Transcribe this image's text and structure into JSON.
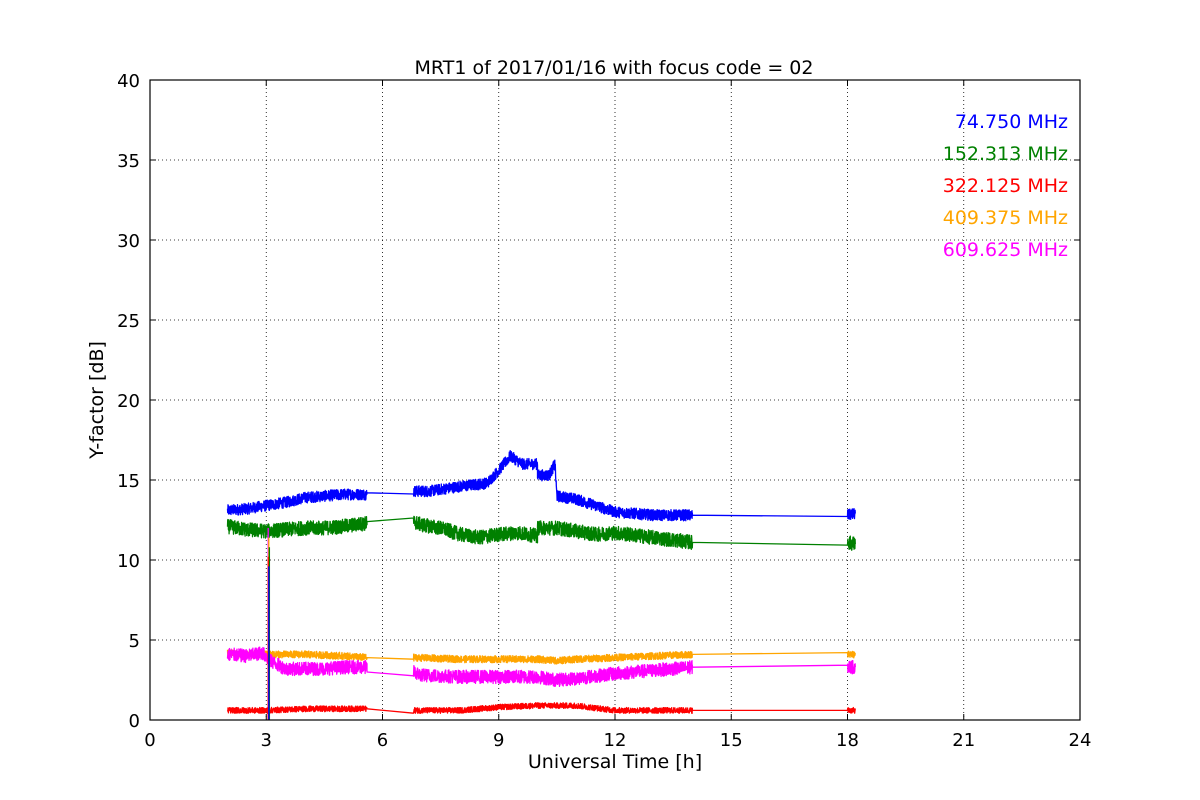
{
  "chart_data": {
    "type": "line",
    "title": "MRT1 of 2017/01/16 with focus code = 02",
    "xlabel": "Universal Time [h]",
    "ylabel": "Y-factor [dB]",
    "xlim": [
      0,
      24
    ],
    "ylim": [
      0,
      40
    ],
    "xticks": [
      0,
      3,
      6,
      9,
      12,
      15,
      18,
      21,
      24
    ],
    "yticks": [
      0,
      5,
      10,
      15,
      20,
      25,
      30,
      35,
      40
    ],
    "grid": true,
    "legend_position": "top-right",
    "series": [
      {
        "name": "74.750 MHz",
        "color": "#0000ff",
        "noise": 0.35,
        "points": [
          [
            2.0,
            13.1
          ],
          [
            2.5,
            13.2
          ],
          [
            3.0,
            13.4
          ],
          [
            3.5,
            13.6
          ],
          [
            4.0,
            13.9
          ],
          [
            4.5,
            14.0
          ],
          [
            5.0,
            14.1
          ],
          [
            5.6,
            14.1
          ],
          [
            5.6,
            14.2
          ],
          [
            6.8,
            14.3
          ],
          [
            7.2,
            14.3
          ],
          [
            8.0,
            14.6
          ],
          [
            8.7,
            14.8
          ],
          [
            9.0,
            15.6
          ],
          [
            9.3,
            16.5
          ],
          [
            9.6,
            16.0
          ],
          [
            10.0,
            16.0
          ],
          [
            10.0,
            15.3
          ],
          [
            10.3,
            15.3
          ],
          [
            10.45,
            16.0
          ],
          [
            10.5,
            14.0
          ],
          [
            11.0,
            13.8
          ],
          [
            11.5,
            13.4
          ],
          [
            12.0,
            13.0
          ],
          [
            13.0,
            12.8
          ],
          [
            14.0,
            12.8
          ],
          [
            18.0,
            12.8
          ],
          [
            18.2,
            12.9
          ]
        ]
      },
      {
        "name": "152.313 MHz",
        "color": "#008000",
        "noise": 0.45,
        "points": [
          [
            2.0,
            12.1
          ],
          [
            2.5,
            11.9
          ],
          [
            3.0,
            11.8
          ],
          [
            3.5,
            11.9
          ],
          [
            4.0,
            12.0
          ],
          [
            4.5,
            12.0
          ],
          [
            5.0,
            12.1
          ],
          [
            5.6,
            12.3
          ],
          [
            5.6,
            12.4
          ],
          [
            6.8,
            12.4
          ],
          [
            7.0,
            12.2
          ],
          [
            7.5,
            12.0
          ],
          [
            8.0,
            11.6
          ],
          [
            8.5,
            11.4
          ],
          [
            9.0,
            11.6
          ],
          [
            9.5,
            11.7
          ],
          [
            10.0,
            11.5
          ],
          [
            10.0,
            12.0
          ],
          [
            10.5,
            12.0
          ],
          [
            11.0,
            11.8
          ],
          [
            11.5,
            11.6
          ],
          [
            12.0,
            11.7
          ],
          [
            13.0,
            11.4
          ],
          [
            14.0,
            11.1
          ],
          [
            18.0,
            11.1
          ],
          [
            18.2,
            11.0
          ]
        ]
      },
      {
        "name": "322.125 MHz",
        "color": "#ff0000",
        "noise": 0.18,
        "points": [
          [
            2.0,
            0.6
          ],
          [
            3.0,
            0.6
          ],
          [
            4.0,
            0.7
          ],
          [
            5.0,
            0.7
          ],
          [
            5.6,
            0.7
          ],
          [
            6.8,
            0.6
          ],
          [
            8.0,
            0.6
          ],
          [
            9.0,
            0.8
          ],
          [
            10.0,
            0.9
          ],
          [
            10.5,
            0.9
          ],
          [
            11.0,
            0.9
          ],
          [
            12.0,
            0.6
          ],
          [
            13.0,
            0.6
          ],
          [
            14.0,
            0.6
          ],
          [
            18.0,
            0.6
          ],
          [
            18.2,
            0.6
          ]
        ]
      },
      {
        "name": "409.375 MHz",
        "color": "#ffa500",
        "noise": 0.22,
        "points": [
          [
            2.0,
            4.2
          ],
          [
            2.5,
            4.1
          ],
          [
            3.0,
            4.1
          ],
          [
            3.5,
            4.1
          ],
          [
            4.0,
            4.1
          ],
          [
            5.0,
            4.0
          ],
          [
            5.6,
            3.9
          ],
          [
            6.8,
            3.9
          ],
          [
            8.0,
            3.8
          ],
          [
            9.0,
            3.8
          ],
          [
            10.0,
            3.8
          ],
          [
            10.5,
            3.7
          ],
          [
            11.0,
            3.8
          ],
          [
            12.0,
            3.9
          ],
          [
            13.0,
            4.0
          ],
          [
            14.0,
            4.1
          ],
          [
            18.0,
            4.1
          ],
          [
            18.2,
            4.1
          ]
        ]
      },
      {
        "name": "609.625 MHz",
        "color": "#ff00ff",
        "noise": 0.42,
        "points": [
          [
            2.0,
            4.1
          ],
          [
            2.5,
            4.0
          ],
          [
            2.9,
            4.2
          ],
          [
            3.1,
            3.7
          ],
          [
            3.5,
            3.2
          ],
          [
            4.0,
            3.2
          ],
          [
            4.5,
            3.2
          ],
          [
            5.0,
            3.3
          ],
          [
            5.6,
            3.3
          ],
          [
            5.6,
            3.0
          ],
          [
            6.8,
            3.0
          ],
          [
            7.0,
            2.8
          ],
          [
            8.0,
            2.7
          ],
          [
            9.0,
            2.7
          ],
          [
            10.0,
            2.7
          ],
          [
            10.5,
            2.5
          ],
          [
            11.0,
            2.6
          ],
          [
            12.0,
            2.9
          ],
          [
            13.0,
            3.1
          ],
          [
            14.0,
            3.3
          ],
          [
            18.0,
            3.3
          ],
          [
            18.2,
            3.3
          ]
        ]
      }
    ],
    "spike": {
      "x": 3.05,
      "y_min": 0.0,
      "y_max": 12.0
    }
  }
}
